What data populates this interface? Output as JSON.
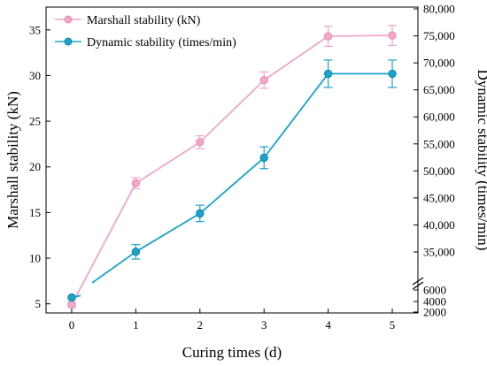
{
  "chart_data": {
    "type": "line",
    "title": "",
    "xlabel": "Curing times (d)",
    "ylabel_left": "Marshall stability (kN)",
    "ylabel_right": "Dynamic stability (times/min)",
    "x": [
      0,
      1,
      2,
      3,
      4,
      5
    ],
    "x_ticks": [
      "0",
      "1",
      "2",
      "3",
      "4",
      "5"
    ],
    "xlim": [
      -0.4,
      5.4
    ],
    "left_axis": {
      "ylim": [
        4,
        37.5
      ],
      "ticks": [
        5,
        10,
        15,
        20,
        25,
        30,
        35
      ],
      "tick_labels": [
        "5",
        "10",
        "15",
        "20",
        "25",
        "30",
        "35"
      ]
    },
    "right_axis": {
      "broken": true,
      "lower_ticks": [
        "2000",
        "4000",
        "6000"
      ],
      "upper_ticks": [
        "35,000",
        "40,000",
        "45,000",
        "50,000",
        "55,000",
        "60,000",
        "65,000",
        "70,000",
        "75,000",
        "80,000"
      ]
    },
    "series": [
      {
        "name": "Marshall stability (kN)",
        "axis": "left",
        "color": "#f0a7c8",
        "values": [
          4.9,
          18.2,
          22.7,
          29.5,
          34.3,
          34.4
        ],
        "errors": [
          0.3,
          0.6,
          0.7,
          0.9,
          1.1,
          1.1
        ]
      },
      {
        "name": "Dynamic stability (times/min)",
        "axis": "right",
        "color": "#1ba3cc",
        "values": [
          4500,
          35800,
          42500,
          52800,
          67800,
          67800
        ],
        "left_equiv": [
          5.7,
          10.7,
          14.9,
          21.0,
          30.2,
          30.2
        ],
        "left_equiv_errors": [
          0.0,
          0.8,
          0.9,
          1.2,
          1.5,
          1.5
        ]
      }
    ],
    "legend": "top-left",
    "grid": false
  }
}
